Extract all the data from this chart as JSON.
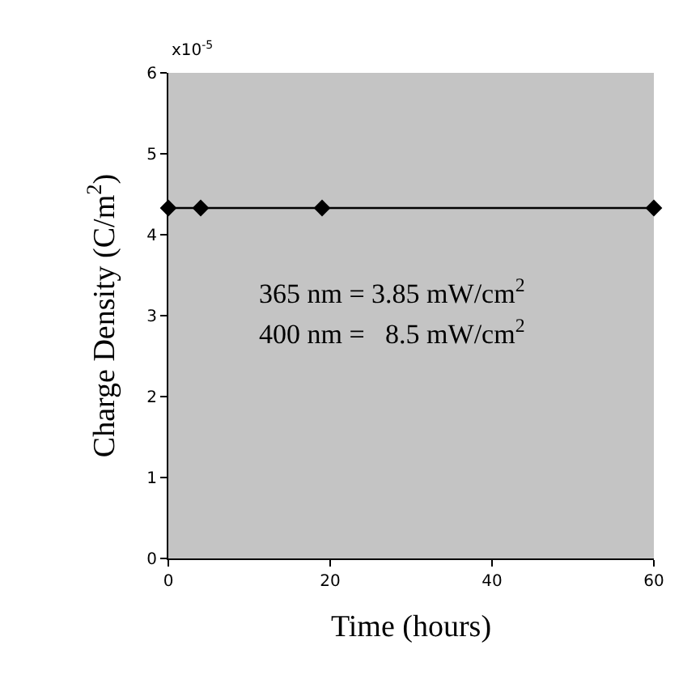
{
  "chart_data": {
    "type": "line",
    "xlabel": "Time (hours)",
    "ylabel": "Charge Density (C/m$^{2}$)",
    "x": [
      0,
      4,
      19,
      60
    ],
    "series": [
      {
        "color": "#000000",
        "values": [
          4.33,
          4.33,
          4.33,
          4.33
        ]
      }
    ],
    "xlim": [
      0,
      60
    ],
    "xticks": [
      0,
      20,
      40,
      60
    ],
    "ylim": [
      0,
      6
    ],
    "yticks": [
      0,
      1,
      2,
      3,
      4,
      5,
      6
    ],
    "grid": false,
    "marker": "diamond",
    "line_style": "solid",
    "annotations": [
      "x10$^{-5}$",
      "365 nm = 3.85 mW/cm$^{2}$",
      "400 nm =   8.5 mW/cm$^{2}$"
    ]
  }
}
